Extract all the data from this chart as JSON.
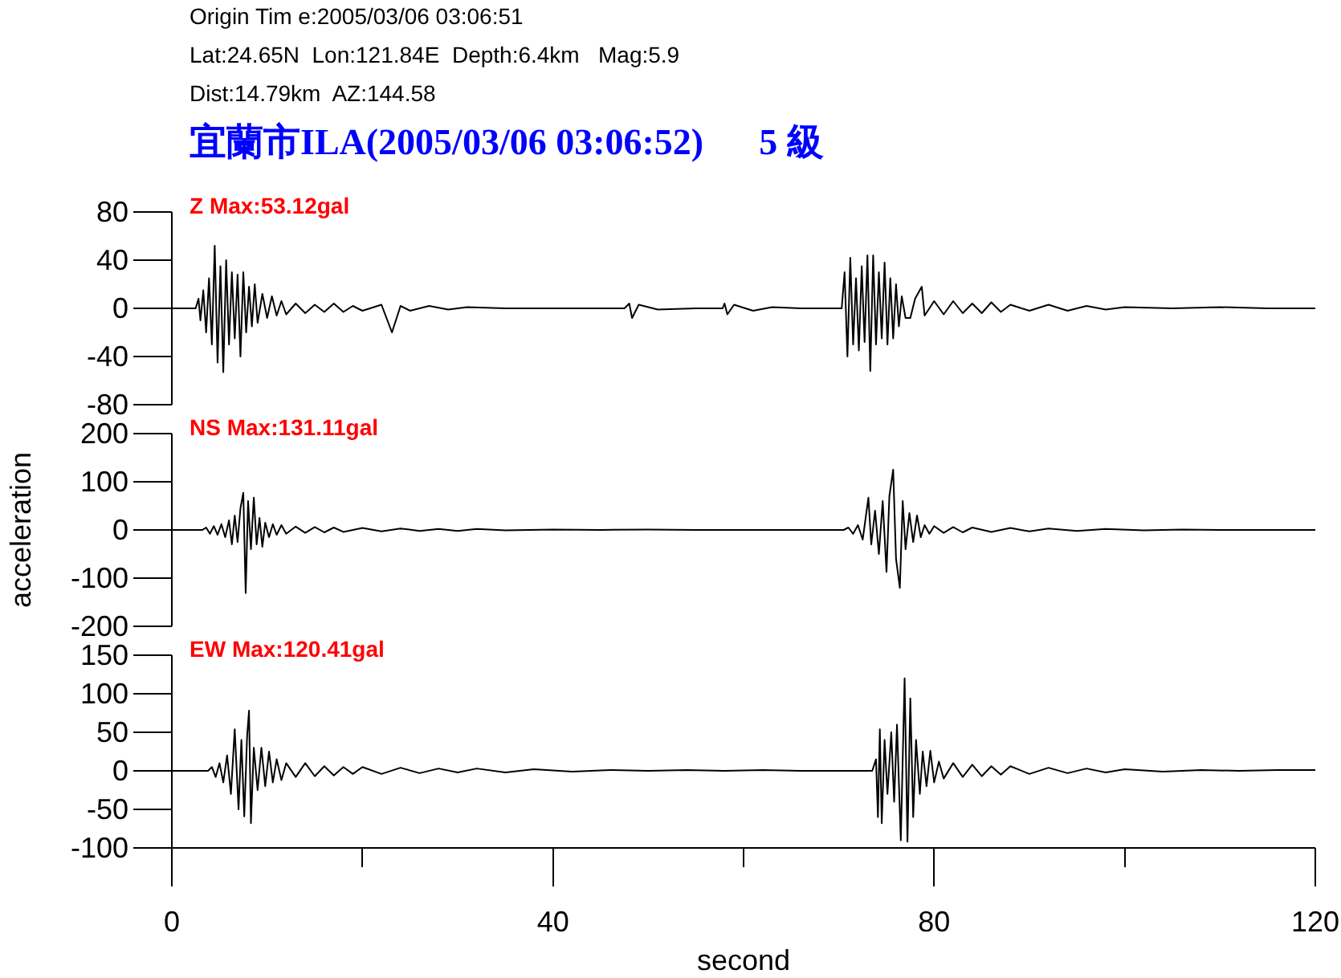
{
  "chart_data": [
    {
      "type": "other",
      "title": "宜蘭市ILA(2005/03/06 03:06:52)      5 級",
      "annotations": [
        "Origin Tim e:2005/03/06 03:06:51",
        "Lat:24.65N  Lon:121.84E  Depth:6.4km   Mag:5.9",
        "Dist:14.79km  AZ:144.58"
      ]
    },
    {
      "type": "line",
      "title": "Z Max:53.12gal",
      "tick_labels": "y",
      "xlim": [
        0,
        120
      ],
      "ylim": [
        -80,
        80
      ],
      "yticks": [
        -80,
        -40,
        0,
        40,
        80
      ],
      "series": [
        {
          "color": "#000000",
          "x": [
            0,
            2.5,
            2.8,
            3.0,
            3.3,
            3.6,
            3.9,
            4.2,
            4.5,
            4.8,
            5.1,
            5.4,
            5.7,
            6.0,
            6.3,
            6.6,
            6.9,
            7.2,
            7.5,
            7.8,
            8.1,
            8.4,
            8.7,
            9.0,
            9.5,
            10,
            10.5,
            11,
            11.5,
            12,
            13,
            14,
            15,
            16,
            17,
            18,
            19,
            20,
            22,
            23.1,
            24,
            25,
            27,
            29,
            31,
            35,
            40,
            47.5,
            48,
            48.3,
            49,
            51,
            55,
            57.8,
            58,
            58.3,
            59,
            61,
            63,
            66,
            70.3,
            70.6,
            70.9,
            71.2,
            71.5,
            71.8,
            72.1,
            72.4,
            72.7,
            73.0,
            73.3,
            73.6,
            73.9,
            74.2,
            74.5,
            74.8,
            75.1,
            75.4,
            75.7,
            76.0,
            76.3,
            76.6,
            77.0,
            77.5,
            78,
            78.7,
            79,
            80,
            81,
            82,
            83,
            84,
            85,
            86,
            87,
            88,
            90,
            92,
            94,
            96,
            98,
            100,
            105,
            110,
            115,
            120
          ],
          "values": [
            0,
            0,
            8,
            -10,
            15,
            -20,
            25,
            -30,
            52,
            -45,
            35,
            -53,
            40,
            -30,
            30,
            -25,
            28,
            -40,
            30,
            -20,
            18,
            -15,
            20,
            -12,
            12,
            -8,
            10,
            -6,
            6,
            -5,
            4,
            -4,
            3,
            -3,
            4,
            -3,
            2,
            -2,
            3,
            -20,
            2,
            -2,
            2,
            -1,
            1,
            0,
            0,
            0,
            4,
            -8,
            3,
            -1,
            0,
            0,
            4,
            -5,
            3,
            -2,
            1,
            0,
            0,
            30,
            -40,
            42,
            -30,
            25,
            -35,
            35,
            -28,
            44,
            -52,
            44,
            -30,
            30,
            -25,
            38,
            -30,
            25,
            -25,
            20,
            -15,
            10,
            -8,
            -8,
            8,
            18,
            -6,
            6,
            -5,
            6,
            -4,
            4,
            -4,
            5,
            -3,
            3,
            -2,
            3,
            -2,
            2,
            -1,
            1,
            0,
            1,
            0,
            0
          ]
        }
      ]
    },
    {
      "type": "line",
      "title": "NS Max:131.11gal",
      "tick_labels": "y",
      "ylabel": "acceleration",
      "xlim": [
        0,
        120
      ],
      "ylim": [
        -200,
        200
      ],
      "yticks": [
        -200,
        -100,
        0,
        100,
        200
      ],
      "series": [
        {
          "color": "#000000",
          "x": [
            0,
            3.2,
            3.6,
            4.0,
            4.4,
            4.8,
            5.2,
            5.6,
            6.0,
            6.3,
            6.6,
            6.9,
            7.2,
            7.5,
            7.75,
            8.0,
            8.3,
            8.6,
            8.9,
            9.2,
            9.5,
            9.8,
            10.2,
            10.6,
            11,
            11.5,
            12,
            13,
            14,
            15,
            16,
            17,
            18,
            20,
            22,
            24,
            26,
            28,
            30,
            32,
            35,
            40,
            45,
            50,
            55,
            60,
            65,
            70.5,
            71,
            71.5,
            72,
            72.5,
            73.1,
            73.4,
            73.8,
            74.2,
            74.6,
            75.0,
            75.3,
            75.7,
            76.0,
            76.4,
            76.7,
            77.0,
            77.4,
            77.8,
            78.2,
            78.6,
            79,
            79.5,
            80,
            81,
            82,
            83,
            84,
            86,
            88,
            90,
            92,
            95,
            98,
            102,
            106,
            110,
            115,
            120
          ],
          "values": [
            0,
            0,
            5,
            -8,
            8,
            -10,
            12,
            -15,
            20,
            -30,
            30,
            -25,
            45,
            77,
            -131,
            60,
            -40,
            67,
            -30,
            25,
            -35,
            15,
            -15,
            12,
            -10,
            10,
            -8,
            7,
            -6,
            6,
            -5,
            5,
            -4,
            4,
            -3,
            3,
            -2,
            2,
            -2,
            2,
            -1,
            1,
            0,
            1,
            0,
            0,
            0,
            0,
            5,
            -8,
            10,
            -20,
            67,
            -30,
            40,
            -50,
            60,
            -87,
            70,
            125,
            -60,
            -120,
            60,
            -40,
            35,
            -25,
            30,
            -15,
            10,
            -8,
            8,
            -6,
            6,
            -5,
            5,
            -4,
            4,
            -3,
            3,
            -2,
            2,
            -1,
            1,
            0,
            0,
            0
          ]
        }
      ]
    },
    {
      "type": "line",
      "title": "EW Max:120.41gal",
      "xlabel": "second",
      "xlim": [
        0,
        120
      ],
      "ylim": [
        -100,
        150
      ],
      "xticks": [
        0,
        {
          "value": 20,
          "label": null
        },
        40,
        {
          "value": 60,
          "label": null
        },
        80,
        {
          "value": 100,
          "label": null
        },
        120
      ],
      "yticks": [
        -100,
        -50,
        0,
        50,
        100,
        150
      ],
      "series": [
        {
          "color": "#000000",
          "x": [
            0,
            3.8,
            4.2,
            4.6,
            5,
            5.4,
            5.8,
            6.2,
            6.6,
            7.0,
            7.3,
            7.6,
            7.9,
            8.1,
            8.3,
            8.6,
            9.0,
            9.4,
            9.8,
            10.2,
            10.6,
            11,
            11.5,
            12,
            13,
            14,
            15,
            16,
            17,
            18,
            19,
            20,
            22,
            24,
            26,
            28,
            30,
            32,
            35,
            38,
            42,
            46,
            50,
            54,
            58,
            62,
            66,
            70,
            73.5,
            73.9,
            74.1,
            74.3,
            74.5,
            74.8,
            75.1,
            75.5,
            75.8,
            76.1,
            76.5,
            76.9,
            77.2,
            77.5,
            77.8,
            78.1,
            78.5,
            78.8,
            79.2,
            79.6,
            80,
            80.5,
            81,
            82,
            83,
            84,
            85,
            86,
            87,
            88,
            90,
            92,
            94,
            96,
            98,
            100,
            104,
            108,
            112,
            116,
            120
          ],
          "values": [
            0,
            0,
            5,
            -8,
            10,
            -15,
            20,
            -30,
            54,
            -50,
            40,
            -59,
            45,
            78,
            -68,
            30,
            -25,
            30,
            -20,
            25,
            -15,
            15,
            -12,
            10,
            -8,
            10,
            -7,
            6,
            -6,
            5,
            -4,
            5,
            -4,
            4,
            -3,
            3,
            -2,
            3,
            -2,
            2,
            -1,
            1,
            0,
            1,
            0,
            1,
            0,
            0,
            0,
            15,
            -60,
            54,
            -68,
            40,
            -30,
            50,
            -40,
            60,
            -90,
            120,
            -92,
            94,
            -60,
            40,
            -30,
            25,
            -20,
            26,
            -15,
            12,
            -10,
            10,
            -8,
            8,
            -7,
            6,
            -5,
            6,
            -4,
            4,
            -3,
            3,
            -2,
            2,
            -1,
            1,
            0,
            1,
            1
          ]
        }
      ]
    }
  ]
}
